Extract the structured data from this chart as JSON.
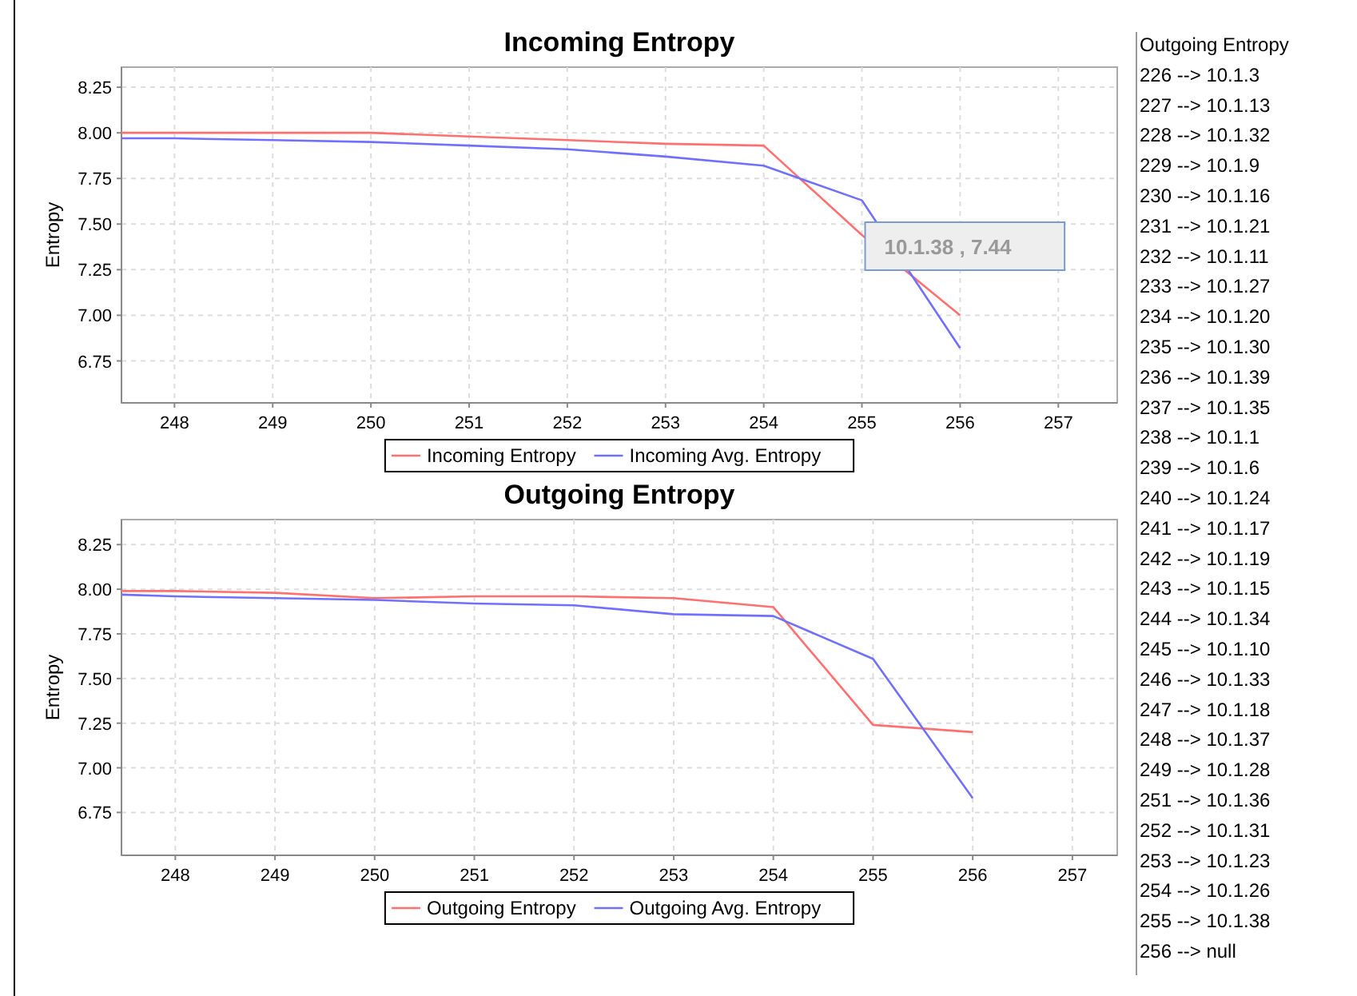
{
  "chart_data": [
    {
      "type": "line",
      "title": "Incoming Entropy",
      "ylabel": "Entropy",
      "x": [
        247.46,
        248,
        249,
        250,
        251,
        252,
        253,
        254,
        255,
        256
      ],
      "series": [
        {
          "name": "Incoming Entropy",
          "color": "#ff7070",
          "values": [
            8.0,
            8.0,
            8.0,
            8.0,
            7.98,
            7.96,
            7.94,
            7.93,
            7.44,
            7.0
          ]
        },
        {
          "name": "Incoming Avg. Entropy",
          "color": "#7070ff",
          "values": [
            7.97,
            7.97,
            7.96,
            7.95,
            7.93,
            7.91,
            7.87,
            7.82,
            7.63,
            6.82
          ]
        }
      ],
      "xlim": [
        247.46,
        257.6
      ],
      "ylim": [
        6.52,
        8.36
      ],
      "xticks": [
        248,
        249,
        250,
        251,
        252,
        253,
        254,
        255,
        256,
        257
      ],
      "yticks": [
        6.75,
        {
          "value": 7,
          "label": "7.00"
        },
        7.25,
        {
          "value": 7.5,
          "label": "7.50"
        },
        7.75,
        {
          "value": 8,
          "label": "8.00"
        },
        8.25
      ],
      "grid": true,
      "legend": "bottom",
      "annotations": [
        {
          "text": "10.1.38 , 7.44",
          "x": 255,
          "y": 7.44
        }
      ]
    },
    {
      "type": "line",
      "title": "Outgoing Entropy",
      "ylabel": "Entropy",
      "x": [
        247.46,
        248,
        249,
        250,
        251,
        252,
        253,
        254,
        255,
        256
      ],
      "series": [
        {
          "name": "Outgoing Entropy",
          "color": "#ff7070",
          "values": [
            7.99,
            7.99,
            7.98,
            7.95,
            7.96,
            7.96,
            7.95,
            7.9,
            7.24,
            7.2
          ]
        },
        {
          "name": "Outgoing Avg. Entropy",
          "color": "#7070ff",
          "values": [
            7.97,
            7.96,
            7.95,
            7.94,
            7.92,
            7.91,
            7.86,
            7.85,
            7.61,
            6.83
          ]
        }
      ],
      "xlim": [
        247.46,
        257.45
      ],
      "ylim": [
        6.51,
        8.39
      ],
      "xticks": [
        248,
        249,
        250,
        251,
        252,
        253,
        254,
        255,
        256,
        257
      ],
      "yticks": [
        6.75,
        {
          "value": 7,
          "label": "7.00"
        },
        7.25,
        {
          "value": 7.5,
          "label": "7.50"
        },
        7.75,
        {
          "value": 8,
          "label": "8.00"
        },
        8.25
      ],
      "grid": true,
      "legend": "bottom"
    },
    {
      "type": "other",
      "title": "Outgoing Entropy",
      "annotations": [
        "226 --> 10.1.3",
        "227 --> 10.1.13",
        "228 --> 10.1.32",
        "229 --> 10.1.9",
        "230 --> 10.1.16",
        "231 --> 10.1.21",
        "232 --> 10.1.11",
        "233 --> 10.1.27",
        "234 --> 10.1.20",
        "235 --> 10.1.30",
        "236 --> 10.1.39",
        "237 --> 10.1.35",
        "238 --> 10.1.1",
        "239 --> 10.1.6",
        "240 --> 10.1.24",
        "241 --> 10.1.17",
        "242 --> 10.1.19",
        "243 --> 10.1.15",
        "244 --> 10.1.34",
        "245 --> 10.1.10",
        "246 --> 10.1.33",
        "247 --> 10.1.18",
        "248 --> 10.1.37",
        "249 --> 10.1.28",
        "251 --> 10.1.36",
        "252 --> 10.1.31",
        "253 --> 10.1.23",
        "254 --> 10.1.26",
        "255 --> 10.1.38",
        "256 --> null"
      ]
    }
  ]
}
